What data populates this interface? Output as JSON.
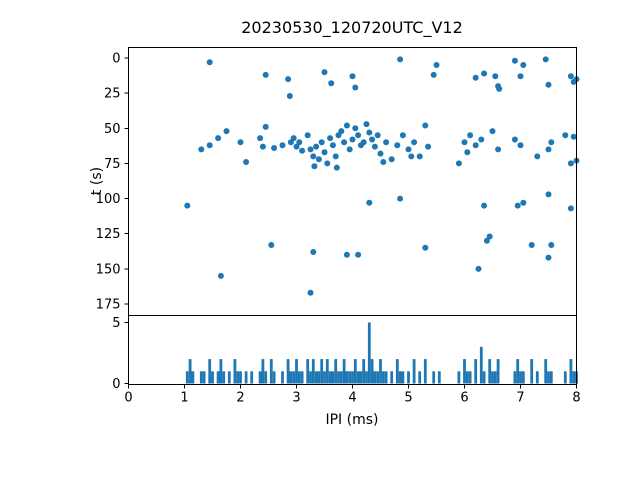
{
  "title": "20230530_120720UTC_V12",
  "accent_color": "#1f77b4",
  "chart_data": [
    {
      "type": "scatter",
      "title": "20230530_120720UTC_V12",
      "xlabel": "IPI (ms)",
      "ylabel": "t (s)",
      "xlim": [
        0,
        8
      ],
      "ylim_display": [
        -8,
        183
      ],
      "y_inverted": true,
      "xticks": [
        0,
        1,
        2,
        3,
        4,
        5,
        6,
        7,
        8
      ],
      "yticks": [
        0,
        25,
        50,
        75,
        100,
        125,
        150,
        175
      ],
      "grid": false,
      "legend": "none",
      "marker_color": "#1f77b4",
      "points": [
        [
          1.45,
          3
        ],
        [
          2.45,
          12
        ],
        [
          2.85,
          15
        ],
        [
          2.88,
          27
        ],
        [
          3.5,
          10
        ],
        [
          3.62,
          18
        ],
        [
          4.0,
          13
        ],
        [
          4.05,
          21
        ],
        [
          4.85,
          1
        ],
        [
          5.45,
          12
        ],
        [
          5.5,
          5
        ],
        [
          6.2,
          14
        ],
        [
          6.35,
          11
        ],
        [
          6.55,
          13
        ],
        [
          6.6,
          20
        ],
        [
          6.62,
          22
        ],
        [
          6.9,
          2
        ],
        [
          7.0,
          13
        ],
        [
          7.05,
          5
        ],
        [
          7.45,
          1
        ],
        [
          7.5,
          19
        ],
        [
          7.9,
          13
        ],
        [
          7.95,
          17
        ],
        [
          8.0,
          15
        ],
        [
          1.3,
          65
        ],
        [
          1.45,
          62
        ],
        [
          1.6,
          57
        ],
        [
          1.75,
          52
        ],
        [
          2.0,
          60
        ],
        [
          2.1,
          74
        ],
        [
          2.35,
          57
        ],
        [
          2.4,
          63
        ],
        [
          2.45,
          49
        ],
        [
          2.6,
          64
        ],
        [
          2.75,
          62
        ],
        [
          2.9,
          60
        ],
        [
          2.95,
          57
        ],
        [
          3.0,
          63
        ],
        [
          3.05,
          60
        ],
        [
          3.1,
          66
        ],
        [
          3.2,
          55
        ],
        [
          3.25,
          65
        ],
        [
          3.3,
          70
        ],
        [
          3.32,
          77
        ],
        [
          3.35,
          63
        ],
        [
          3.4,
          72
        ],
        [
          3.45,
          60
        ],
        [
          3.5,
          67
        ],
        [
          3.55,
          75
        ],
        [
          3.6,
          57
        ],
        [
          3.65,
          62
        ],
        [
          3.7,
          70
        ],
        [
          3.72,
          78
        ],
        [
          3.75,
          55
        ],
        [
          3.8,
          52
        ],
        [
          3.85,
          60
        ],
        [
          3.9,
          48
        ],
        [
          3.95,
          65
        ],
        [
          4.0,
          58
        ],
        [
          4.05,
          50
        ],
        [
          4.1,
          55
        ],
        [
          4.15,
          62
        ],
        [
          4.2,
          60
        ],
        [
          4.25,
          47
        ],
        [
          4.3,
          53
        ],
        [
          4.35,
          58
        ],
        [
          4.4,
          63
        ],
        [
          4.45,
          55
        ],
        [
          4.5,
          68
        ],
        [
          4.55,
          74
        ],
        [
          4.6,
          60
        ],
        [
          4.7,
          72
        ],
        [
          4.8,
          62
        ],
        [
          4.9,
          55
        ],
        [
          5.0,
          65
        ],
        [
          5.05,
          70
        ],
        [
          5.1,
          60
        ],
        [
          5.2,
          70
        ],
        [
          5.3,
          48
        ],
        [
          5.35,
          63
        ],
        [
          5.9,
          75
        ],
        [
          6.0,
          60
        ],
        [
          6.05,
          67
        ],
        [
          6.1,
          55
        ],
        [
          6.2,
          62
        ],
        [
          6.3,
          58
        ],
        [
          6.5,
          52
        ],
        [
          6.6,
          65
        ],
        [
          6.9,
          58
        ],
        [
          7.0,
          62
        ],
        [
          7.3,
          70
        ],
        [
          7.5,
          65
        ],
        [
          7.55,
          60
        ],
        [
          7.8,
          55
        ],
        [
          7.9,
          75
        ],
        [
          7.95,
          56
        ],
        [
          8.0,
          73
        ],
        [
          1.05,
          105
        ],
        [
          4.3,
          103
        ],
        [
          4.85,
          100
        ],
        [
          6.35,
          105
        ],
        [
          6.95,
          105
        ],
        [
          7.05,
          103
        ],
        [
          7.5,
          97
        ],
        [
          7.9,
          107
        ],
        [
          2.55,
          133
        ],
        [
          3.3,
          138
        ],
        [
          3.9,
          140
        ],
        [
          4.1,
          140
        ],
        [
          5.3,
          135
        ],
        [
          6.4,
          130
        ],
        [
          6.45,
          127
        ],
        [
          7.2,
          133
        ],
        [
          7.5,
          142
        ],
        [
          7.55,
          133
        ],
        [
          1.65,
          155
        ],
        [
          6.25,
          150
        ],
        [
          3.25,
          167
        ]
      ]
    },
    {
      "type": "bar",
      "xlabel": "IPI (ms)",
      "xlim": [
        0,
        8
      ],
      "ylim": [
        0,
        5.6
      ],
      "yticks": [
        0,
        5
      ],
      "bin_width": 0.05,
      "bar_color": "#1f77b4",
      "bars": [
        [
          1.05,
          1
        ],
        [
          1.1,
          2
        ],
        [
          1.15,
          1
        ],
        [
          1.3,
          1
        ],
        [
          1.35,
          1
        ],
        [
          1.45,
          2
        ],
        [
          1.5,
          1
        ],
        [
          1.6,
          1
        ],
        [
          1.65,
          2
        ],
        [
          1.7,
          1
        ],
        [
          1.8,
          1
        ],
        [
          1.9,
          2
        ],
        [
          1.95,
          1
        ],
        [
          2.0,
          1
        ],
        [
          2.1,
          1
        ],
        [
          2.2,
          1
        ],
        [
          2.35,
          1
        ],
        [
          2.4,
          2
        ],
        [
          2.45,
          1
        ],
        [
          2.55,
          2
        ],
        [
          2.6,
          1
        ],
        [
          2.75,
          1
        ],
        [
          2.85,
          2
        ],
        [
          2.9,
          1
        ],
        [
          2.95,
          1
        ],
        [
          3.0,
          2
        ],
        [
          3.05,
          1
        ],
        [
          3.1,
          1
        ],
        [
          3.2,
          2
        ],
        [
          3.25,
          1
        ],
        [
          3.3,
          2
        ],
        [
          3.35,
          1
        ],
        [
          3.4,
          1
        ],
        [
          3.45,
          2
        ],
        [
          3.5,
          1
        ],
        [
          3.55,
          2
        ],
        [
          3.6,
          1
        ],
        [
          3.65,
          1
        ],
        [
          3.7,
          2
        ],
        [
          3.75,
          1
        ],
        [
          3.8,
          1
        ],
        [
          3.85,
          2
        ],
        [
          3.9,
          1
        ],
        [
          3.95,
          1
        ],
        [
          4.0,
          1
        ],
        [
          4.05,
          2
        ],
        [
          4.1,
          1
        ],
        [
          4.15,
          1
        ],
        [
          4.2,
          2
        ],
        [
          4.25,
          1
        ],
        [
          4.3,
          5
        ],
        [
          4.35,
          2
        ],
        [
          4.4,
          1
        ],
        [
          4.45,
          1
        ],
        [
          4.5,
          2
        ],
        [
          4.55,
          1
        ],
        [
          4.6,
          1
        ],
        [
          4.7,
          1
        ],
        [
          4.8,
          2
        ],
        [
          4.85,
          1
        ],
        [
          4.9,
          1
        ],
        [
          5.0,
          1
        ],
        [
          5.1,
          2
        ],
        [
          5.2,
          1
        ],
        [
          5.3,
          2
        ],
        [
          5.45,
          1
        ],
        [
          5.55,
          1
        ],
        [
          5.9,
          1
        ],
        [
          6.0,
          2
        ],
        [
          6.05,
          1
        ],
        [
          6.1,
          1
        ],
        [
          6.2,
          2
        ],
        [
          6.3,
          3
        ],
        [
          6.35,
          1
        ],
        [
          6.45,
          2
        ],
        [
          6.5,
          1
        ],
        [
          6.55,
          1
        ],
        [
          6.6,
          2
        ],
        [
          6.9,
          1
        ],
        [
          6.95,
          2
        ],
        [
          7.0,
          1
        ],
        [
          7.05,
          1
        ],
        [
          7.2,
          2
        ],
        [
          7.3,
          1
        ],
        [
          7.45,
          2
        ],
        [
          7.5,
          1
        ],
        [
          7.55,
          1
        ],
        [
          7.8,
          1
        ],
        [
          7.9,
          2
        ],
        [
          7.95,
          1
        ],
        [
          8.0,
          1
        ]
      ]
    }
  ]
}
